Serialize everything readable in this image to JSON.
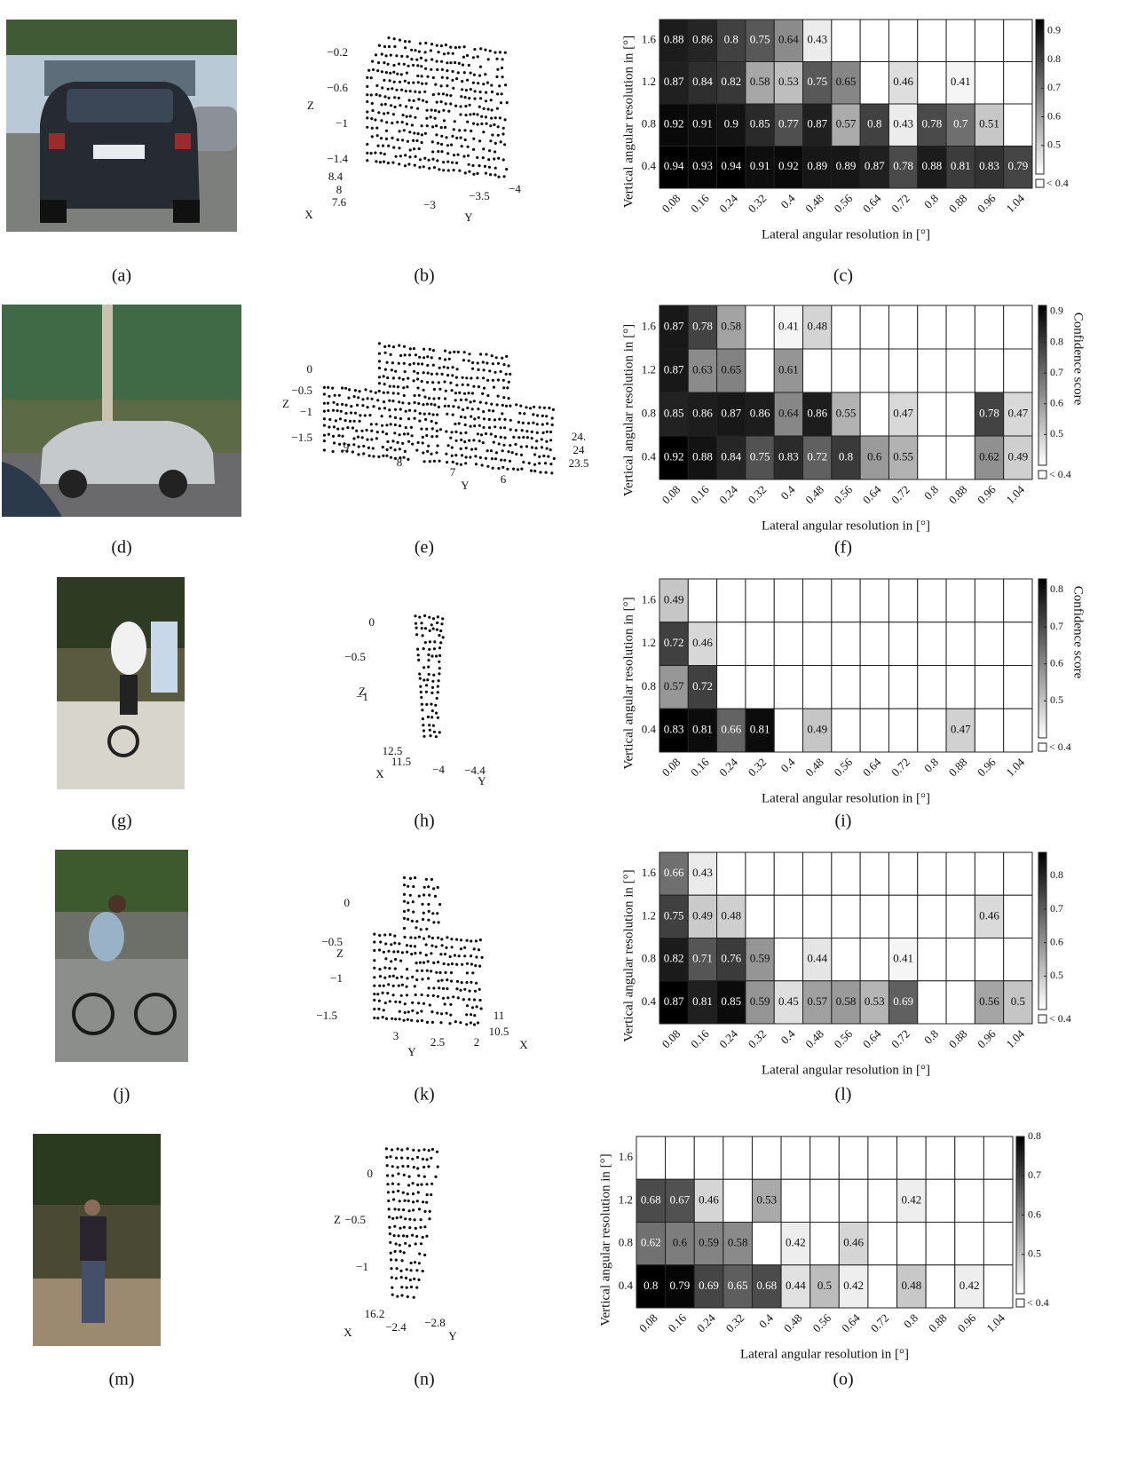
{
  "labels": [
    [
      "(a)",
      "(b)",
      "(c)"
    ],
    [
      "(d)",
      "(e)",
      "(f)"
    ],
    [
      "(g)",
      "(h)",
      "(i)"
    ],
    [
      "(j)",
      "(k)",
      "(l)"
    ],
    [
      "(m)",
      "(n)",
      "(o)"
    ]
  ],
  "point_clouds": [
    {
      "z_label": "Z",
      "z_ticks": [
        "−0.2",
        "−0.6",
        "−1",
        "−1.4"
      ],
      "x_label": "X",
      "x_ticks": [
        "8.4",
        "8",
        "7.6"
      ],
      "y_label": "Y",
      "y_ticks": [
        "−3",
        "−3.5",
        "−4"
      ]
    },
    {
      "z_label": "Z",
      "z_ticks": [
        "0",
        "−0.5",
        "−1",
        "−1.5"
      ],
      "x_ticks": [
        "24.",
        "24",
        "23.5"
      ],
      "y_label": "Y",
      "y_ticks": [
        "9",
        "8",
        "7",
        "6"
      ]
    },
    {
      "z_label": "Z",
      "z_ticks": [
        "0",
        "−0.5",
        "−1"
      ],
      "x_label": "X",
      "x_ticks": [
        "12.5",
        "11.5"
      ],
      "y_label": "Y",
      "y_ticks": [
        "−4",
        "−4.4"
      ]
    },
    {
      "z_label": "Z",
      "z_ticks": [
        "0",
        "−0.5",
        "−1",
        "−1.5"
      ],
      "x_label": "X",
      "x_ticks": [
        "11",
        "10.5"
      ],
      "y_label": "Y",
      "y_ticks": [
        "3",
        "2.5",
        "2"
      ]
    },
    {
      "z_label": "Z",
      "z_ticks": [
        "0",
        "−0.5",
        "−1"
      ],
      "x_label": "X",
      "x_ticks": [
        "16.2"
      ],
      "y_label": "Y",
      "y_ticks": [
        "−2.4",
        "−2.8"
      ]
    }
  ],
  "chart_data": [
    {
      "type": "heatmap",
      "x_label": "Lateral angular resolution in [°]",
      "y_label": "Vertical angular resolution in [°]",
      "x_categories": [
        0.08,
        0.16,
        0.24,
        0.32,
        0.4,
        0.48,
        0.56,
        0.64,
        0.72,
        0.8,
        0.88,
        0.96,
        1.04
      ],
      "y_categories": [
        1.6,
        1.2,
        0.8,
        0.4
      ],
      "values": [
        [
          0.88,
          0.86,
          0.8,
          0.75,
          0.64,
          0.43,
          null,
          null,
          null,
          null,
          null,
          null,
          null
        ],
        [
          0.87,
          0.84,
          0.82,
          0.58,
          0.53,
          0.75,
          0.65,
          null,
          0.46,
          null,
          0.41,
          null,
          null
        ],
        [
          0.92,
          0.91,
          0.9,
          0.85,
          0.77,
          0.87,
          0.57,
          0.8,
          0.43,
          0.78,
          0.7,
          0.51,
          null
        ],
        [
          0.94,
          0.93,
          0.94,
          0.91,
          0.92,
          0.89,
          0.89,
          0.87,
          0.78,
          0.88,
          0.81,
          0.83,
          0.79
        ]
      ],
      "zlim": [
        0.4,
        0.94
      ],
      "zticks": [
        0.5,
        0.6,
        0.7,
        0.8,
        0.9
      ],
      "under_label": "< 0.4"
    },
    {
      "type": "heatmap",
      "x_label": "Lateral angular resolution in [°]",
      "y_label": "Vertical angular resolution in [°]",
      "x_categories": [
        0.08,
        0.16,
        0.24,
        0.32,
        0.4,
        0.48,
        0.56,
        0.64,
        0.72,
        0.8,
        0.88,
        0.96,
        1.04
      ],
      "y_categories": [
        1.6,
        1.2,
        0.8,
        0.4
      ],
      "values": [
        [
          0.87,
          0.78,
          0.58,
          null,
          0.41,
          0.48,
          null,
          null,
          null,
          null,
          null,
          null,
          null
        ],
        [
          0.87,
          0.63,
          0.65,
          null,
          0.61,
          null,
          null,
          null,
          null,
          null,
          null,
          null,
          null
        ],
        [
          0.85,
          0.86,
          0.87,
          0.86,
          0.64,
          0.86,
          0.55,
          null,
          0.47,
          null,
          null,
          0.78,
          0.47
        ],
        [
          0.92,
          0.88,
          0.84,
          0.75,
          0.83,
          0.72,
          0.8,
          0.6,
          0.55,
          null,
          null,
          0.62,
          0.49
        ]
      ],
      "zlim": [
        0.4,
        0.92
      ],
      "zticks": [
        0.5,
        0.6,
        0.7,
        0.8,
        0.9
      ],
      "under_label": "< 0.4",
      "colorbar_label": "Confidence score"
    },
    {
      "type": "heatmap",
      "x_label": "Lateral angular resolution in [°]",
      "y_label": "Vertical angular resolution in [°]",
      "x_categories": [
        0.08,
        0.16,
        0.24,
        0.32,
        0.4,
        0.48,
        0.56,
        0.64,
        0.72,
        0.8,
        0.88,
        0.96,
        1.04
      ],
      "y_categories": [
        1.6,
        1.2,
        0.8,
        0.4
      ],
      "values": [
        [
          0.49,
          null,
          null,
          null,
          null,
          null,
          null,
          null,
          null,
          null,
          null,
          null,
          null
        ],
        [
          0.72,
          0.46,
          null,
          null,
          null,
          null,
          null,
          null,
          null,
          null,
          null,
          null,
          null
        ],
        [
          0.57,
          0.72,
          null,
          null,
          null,
          null,
          null,
          null,
          null,
          null,
          null,
          null,
          null
        ],
        [
          0.83,
          0.81,
          0.66,
          0.81,
          null,
          0.49,
          null,
          null,
          null,
          null,
          0.47,
          null,
          null
        ]
      ],
      "zlim": [
        0.4,
        0.83
      ],
      "zticks": [
        0.5,
        0.6,
        0.7,
        0.8
      ],
      "under_label": "< 0.4",
      "colorbar_label": "Confidence score"
    },
    {
      "type": "heatmap",
      "x_label": "Lateral angular resolution in [°]",
      "y_label": "Vertical angular resolution in [°]",
      "x_categories": [
        0.08,
        0.16,
        0.24,
        0.32,
        0.4,
        0.48,
        0.56,
        0.64,
        0.72,
        0.8,
        0.88,
        0.96,
        1.04
      ],
      "y_categories": [
        1.6,
        1.2,
        0.8,
        0.4
      ],
      "values": [
        [
          0.66,
          0.43,
          null,
          null,
          null,
          null,
          null,
          null,
          null,
          null,
          null,
          null,
          null
        ],
        [
          0.75,
          0.49,
          0.48,
          null,
          null,
          null,
          null,
          null,
          null,
          null,
          null,
          0.46,
          null
        ],
        [
          0.82,
          0.71,
          0.76,
          0.59,
          null,
          0.44,
          null,
          null,
          0.41,
          null,
          null,
          null,
          null
        ],
        [
          0.87,
          0.81,
          0.85,
          0.59,
          0.45,
          0.57,
          0.58,
          0.53,
          0.69,
          null,
          null,
          0.56,
          0.5
        ]
      ],
      "zlim": [
        0.4,
        0.87
      ],
      "zticks": [
        0.5,
        0.6,
        0.7,
        0.8
      ],
      "under_label": "< 0.4"
    },
    {
      "type": "heatmap",
      "x_label": "Lateral angular resolution in [°]",
      "y_label": "Vertical angular resolution in [°]",
      "x_categories": [
        0.08,
        0.16,
        0.24,
        0.32,
        0.4,
        0.48,
        0.56,
        0.64,
        0.72,
        0.8,
        0.88,
        0.96,
        1.04
      ],
      "y_categories": [
        1.6,
        1.2,
        0.8,
        0.4
      ],
      "values": [
        [
          null,
          null,
          null,
          null,
          null,
          null,
          null,
          null,
          null,
          null,
          null,
          null,
          null
        ],
        [
          0.68,
          0.67,
          0.46,
          null,
          0.53,
          null,
          null,
          null,
          null,
          0.42,
          null,
          null,
          null
        ],
        [
          0.62,
          0.6,
          0.59,
          0.58,
          null,
          0.42,
          null,
          0.46,
          null,
          null,
          null,
          null,
          null
        ],
        [
          0.8,
          0.79,
          0.69,
          0.65,
          0.68,
          0.44,
          0.5,
          0.42,
          null,
          0.48,
          null,
          0.42,
          null
        ]
      ],
      "zlim": [
        0.4,
        0.8
      ],
      "zticks": [
        0.5,
        0.6,
        0.7,
        0.8
      ],
      "under_label": "< 0.4"
    }
  ]
}
